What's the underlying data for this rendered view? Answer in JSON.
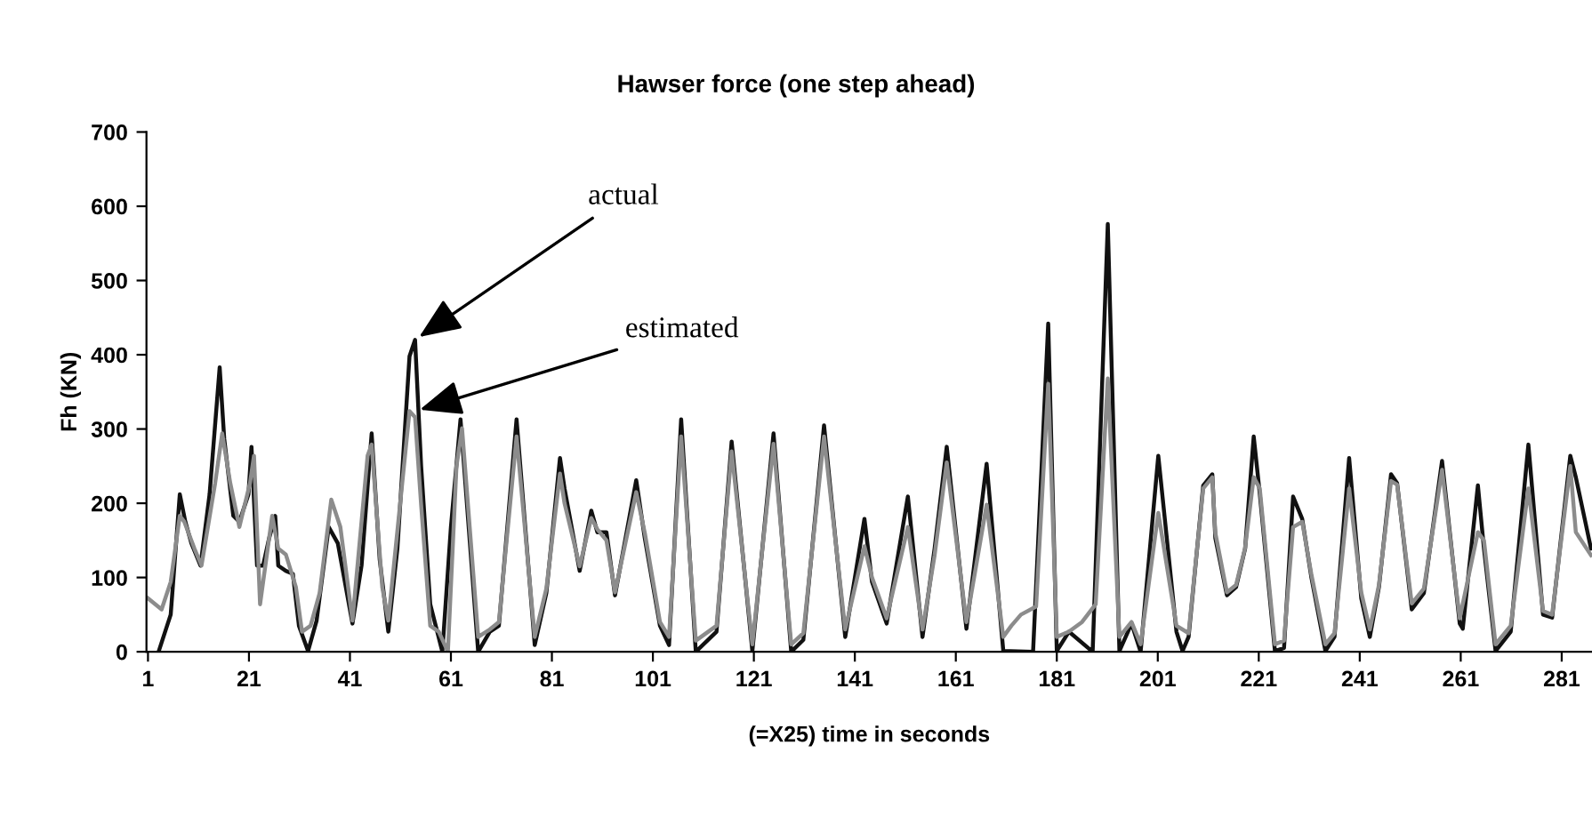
{
  "chart_data": {
    "type": "line",
    "title": "Hawser force (one step ahead)",
    "xlabel": "(=X25) time in seconds",
    "ylabel": "Fh (KN)",
    "xlim": [
      0.7,
      287
    ],
    "xticks": [
      1,
      21,
      41,
      61,
      81,
      101,
      121,
      141,
      161,
      181,
      201,
      221,
      241,
      261,
      281
    ],
    "ylim": [
      0,
      700
    ],
    "yticks": [
      0,
      100,
      200,
      300,
      400,
      500,
      600,
      700
    ],
    "grid": false,
    "legend": false,
    "marker": "none",
    "line_style": "solid",
    "annotations": [
      {
        "text": "actual",
        "x": 53.9,
        "y": 420
      },
      {
        "text": "estimated",
        "x": 53.9,
        "y": 324
      }
    ],
    "series": [
      {
        "color": "#111111",
        "x": [
          3.1,
          5.5,
          7.3,
          8.4,
          9.6,
          11.4,
          13.2,
          15.2,
          16.1,
          17.9,
          19.1,
          20.9,
          21.5,
          22.6,
          23.8,
          25.0,
          26.2,
          26.8,
          28.3,
          29.7,
          30.9,
          32.7,
          34.4,
          36.8,
          38.6,
          41.5,
          43.3,
          45.3,
          46.9,
          48.6,
          50.4,
          52.8,
          53.9,
          55.1,
          56.9,
          59.3,
          61.0,
          62.9,
          66.4,
          68.7,
          70.5,
          74.0,
          77.6,
          79.9,
          82.6,
          83.5,
          86.5,
          88.8,
          90.0,
          91.8,
          93.5,
          97.7,
          99.4,
          102.4,
          104.2,
          106.6,
          109.5,
          113.6,
          116.6,
          120.7,
          124.9,
          128.4,
          130.8,
          134.9,
          139.1,
          142.9,
          144.4,
          147.3,
          151.5,
          154.4,
          156.8,
          159.2,
          163.1,
          167.1,
          170.4,
          176.3,
          179.3,
          181.0,
          183.4,
          188.1,
          191.1,
          193.4,
          195.8,
          197.6,
          201.1,
          204.7,
          205.9,
          207.1,
          210.0,
          211.8,
          212.4,
          214.7,
          216.5,
          218.3,
          220.0,
          221.2,
          224.2,
          226.0,
          227.8,
          229.6,
          231.4,
          234.2,
          236.0,
          238.9,
          241.3,
          243.0,
          244.8,
          247.2,
          248.4,
          251.3,
          253.7,
          257.3,
          260.8,
          261.4,
          264.4,
          265.6,
          267.9,
          270.9,
          274.4,
          277.3,
          279.1,
          282.7,
          283.8,
          286.8
        ],
        "values": [
          0,
          50,
          212,
          175,
          146,
          116,
          212,
          383,
          287,
          183,
          175,
          212,
          276,
          116,
          116,
          153,
          183,
          116,
          109,
          105,
          35,
          1,
          42,
          168,
          146,
          38,
          116,
          294,
          124,
          27,
          139,
          398,
          420,
          250,
          64,
          0,
          168,
          313,
          0,
          27,
          35,
          313,
          9,
          79,
          261,
          220,
          109,
          190,
          161,
          161,
          76,
          231,
          153,
          35,
          9,
          313,
          0,
          27,
          283,
          1,
          294,
          0,
          16,
          305,
          20,
          179,
          94,
          38,
          209,
          20,
          139,
          276,
          31,
          253,
          1,
          0,
          442,
          1,
          27,
          0,
          576,
          1,
          38,
          0,
          264,
          27,
          1,
          20,
          224,
          239,
          153,
          76,
          87,
          139,
          290,
          213,
          1,
          5,
          209,
          179,
          101,
          1,
          20,
          261,
          72,
          20,
          87,
          239,
          227,
          57,
          79,
          257,
          38,
          31,
          224,
          139,
          1,
          27,
          279,
          50,
          46,
          264,
          235,
          139
        ]
      },
      {
        "color": "#8c8c8c",
        "x": [
          1,
          3.7,
          5.5,
          7.3,
          8.2,
          10.2,
          11.6,
          14.3,
          15.7,
          17.3,
          19.1,
          21.2,
          22,
          23.2,
          25.6,
          26.8,
          28.3,
          30.3,
          31.5,
          33.2,
          35,
          37.3,
          39.1,
          41.5,
          44.5,
          45.3,
          47.4,
          48.6,
          52.8,
          53.9,
          55.1,
          56.9,
          58.6,
          60.4,
          62.1,
          63.2,
          66.4,
          68.7,
          70.5,
          74.0,
          77.6,
          79.9,
          82.6,
          83.5,
          86.5,
          88.8,
          90.0,
          91.8,
          93.5,
          97.7,
          99.4,
          102.4,
          104.2,
          106.6,
          109.5,
          113.6,
          116.6,
          120.7,
          124.9,
          128.4,
          130.8,
          134.9,
          139.1,
          142.9,
          144.4,
          147.3,
          151.5,
          154.4,
          156.8,
          159.2,
          163.1,
          167.1,
          170.4,
          172,
          173.9,
          176.9,
          179.3,
          181,
          183.4,
          186,
          188.7,
          191.1,
          193.4,
          195.8,
          197.6,
          201.1,
          204.7,
          207.1,
          210.0,
          211.8,
          212.4,
          214.7,
          216.5,
          218.3,
          220.0,
          221.2,
          224.2,
          226.0,
          227.8,
          229.6,
          231.4,
          234.2,
          236.0,
          238.9,
          241.3,
          243.0,
          244.8,
          247.2,
          248.4,
          251.3,
          253.7,
          257.3,
          260.8,
          264.4,
          265.6,
          267.9,
          270.9,
          274.4,
          277.3,
          279.1,
          282.7,
          283.8,
          286.8
        ],
        "values": [
          72,
          57,
          94,
          183,
          175,
          139,
          116,
          227,
          294,
          227,
          168,
          227,
          264,
          64,
          183,
          139,
          131,
          87,
          27,
          35,
          79,
          205,
          168,
          42,
          264,
          279,
          87,
          42,
          324,
          316,
          198,
          35,
          27,
          0,
          250,
          301,
          20,
          30,
          40,
          290,
          20,
          85,
          240,
          200,
          115,
          180,
          165,
          150,
          80,
          215,
          160,
          40,
          20,
          290,
          15,
          35,
          270,
          10,
          280,
          10,
          25,
          290,
          30,
          142,
          100,
          45,
          168,
          30,
          130,
          255,
          40,
          198,
          20,
          35,
          50,
          61,
          361,
          20,
          27,
          40,
          64,
          368,
          20,
          40,
          10,
          187,
          35,
          25,
          220,
          235,
          160,
          80,
          90,
          140,
          235,
          220,
          10,
          15,
          168,
          175,
          105,
          10,
          25,
          220,
          80,
          30,
          90,
          230,
          225,
          65,
          85,
          245,
          45,
          161,
          150,
          10,
          35,
          220,
          55,
          50,
          250,
          161,
          130
        ]
      }
    ]
  }
}
